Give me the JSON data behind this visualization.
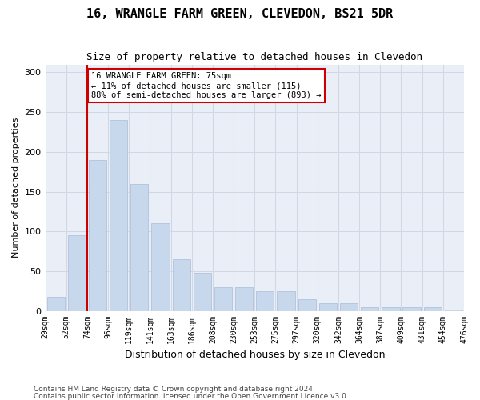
{
  "title": "16, WRANGLE FARM GREEN, CLEVEDON, BS21 5DR",
  "subtitle": "Size of property relative to detached houses in Clevedon",
  "xlabel": "Distribution of detached houses by size in Clevedon",
  "ylabel": "Number of detached properties",
  "bar_color": "#c8d8ec",
  "bar_edge_color": "#a8bcd8",
  "grid_color": "#d0d8e8",
  "background_color": "#eaeff7",
  "property_line_color": "#cc0000",
  "annotation_box_color": "#cc0000",
  "bin_labels": [
    "29sqm",
    "52sqm",
    "74sqm",
    "96sqm",
    "119sqm",
    "141sqm",
    "163sqm",
    "186sqm",
    "208sqm",
    "230sqm",
    "253sqm",
    "275sqm",
    "297sqm",
    "320sqm",
    "342sqm",
    "364sqm",
    "387sqm",
    "409sqm",
    "431sqm",
    "454sqm",
    "476sqm"
  ],
  "values": [
    18,
    95,
    190,
    240,
    160,
    110,
    65,
    48,
    30,
    30,
    25,
    25,
    15,
    10,
    10,
    5,
    5,
    5,
    5,
    2
  ],
  "ylim": [
    0,
    310
  ],
  "yticks": [
    0,
    50,
    100,
    150,
    200,
    250,
    300
  ],
  "property_bin_index": 2,
  "annotation_text": "16 WRANGLE FARM GREEN: 75sqm\n← 11% of detached houses are smaller (115)\n88% of semi-detached houses are larger (893) →",
  "footnote1": "Contains HM Land Registry data © Crown copyright and database right 2024.",
  "footnote2": "Contains public sector information licensed under the Open Government Licence v3.0."
}
